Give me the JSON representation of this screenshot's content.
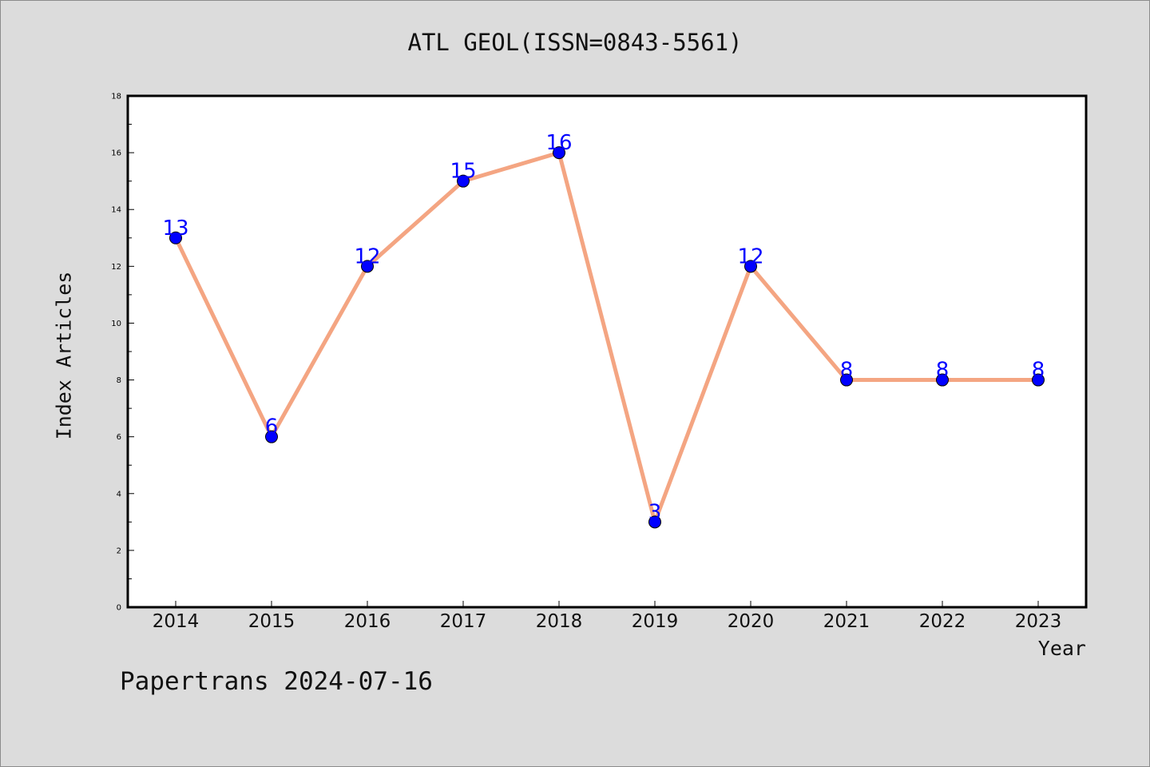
{
  "chart_data": {
    "type": "line",
    "title": "ATL GEOL(ISSN=0843-5561)",
    "xlabel": "Year",
    "ylabel": "Index Articles",
    "categories": [
      "2014",
      "2015",
      "2016",
      "2017",
      "2018",
      "2019",
      "2020",
      "2021",
      "2022",
      "2023"
    ],
    "values": [
      13,
      6,
      12,
      15,
      16,
      3,
      12,
      8,
      8,
      8
    ],
    "ylim": [
      0,
      18
    ],
    "yticks": [
      "0",
      "2",
      "4",
      "6",
      "8",
      "10",
      "12",
      "14",
      "16",
      "18"
    ],
    "grid": false,
    "line_color": "#f4a582",
    "marker_color": "#0000ff",
    "label_color": "#0000ff"
  },
  "footer": "Papertrans 2024-07-16"
}
